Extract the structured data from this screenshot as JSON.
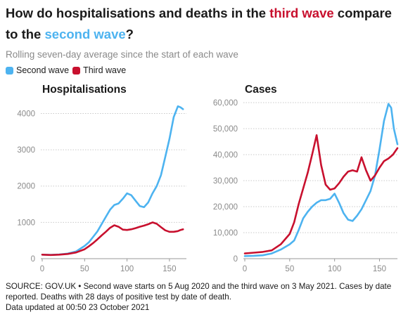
{
  "title": {
    "prefix": "How do hospitalisations and deaths in the ",
    "highlight1": "third wave",
    "middle": " compare to the ",
    "highlight2": "second wave",
    "suffix": "?"
  },
  "subtitle": "Rolling seven-day average since the start of each wave",
  "colors": {
    "second_wave": "#4db3f0",
    "third_wave": "#c8102e"
  },
  "legend": [
    {
      "label": "Second wave",
      "color": "#4db3f0"
    },
    {
      "label": "Third wave",
      "color": "#c8102e"
    }
  ],
  "chart_data": [
    {
      "type": "line",
      "title": "Hospitalisations",
      "xlabel": "",
      "ylabel": "",
      "xlim": [
        0,
        170
      ],
      "ylim": [
        0,
        4300
      ],
      "xticks": [
        0,
        50,
        100,
        150
      ],
      "yticks": [
        0,
        1000,
        2000,
        3000,
        4000
      ],
      "ytick_labels": [
        "0",
        "1000",
        "2000",
        "3000",
        "4000"
      ],
      "grid": true,
      "series": [
        {
          "name": "Second wave",
          "color": "#4db3f0",
          "x": [
            0,
            10,
            20,
            30,
            40,
            50,
            55,
            60,
            65,
            70,
            75,
            80,
            85,
            90,
            95,
            100,
            105,
            110,
            115,
            120,
            125,
            130,
            135,
            140,
            145,
            150,
            155,
            160,
            163,
            166
          ],
          "y": [
            110,
            105,
            115,
            140,
            200,
            350,
            450,
            600,
            750,
            950,
            1150,
            1350,
            1480,
            1520,
            1650,
            1800,
            1750,
            1600,
            1450,
            1420,
            1550,
            1800,
            2000,
            2300,
            2800,
            3300,
            3900,
            4200,
            4170,
            4120
          ]
        },
        {
          "name": "Third wave",
          "color": "#c8102e",
          "x": [
            0,
            10,
            20,
            30,
            40,
            50,
            55,
            60,
            65,
            70,
            75,
            80,
            85,
            90,
            95,
            100,
            105,
            110,
            115,
            120,
            125,
            130,
            135,
            140,
            145,
            150,
            155,
            160,
            163,
            166
          ],
          "y": [
            110,
            100,
            110,
            130,
            170,
            260,
            340,
            430,
            530,
            640,
            740,
            850,
            920,
            880,
            800,
            790,
            810,
            840,
            880,
            910,
            950,
            1000,
            960,
            870,
            780,
            740,
            740,
            760,
            790,
            810
          ]
        }
      ]
    },
    {
      "type": "line",
      "title": "Cases",
      "xlabel": "",
      "ylabel": "",
      "xlim": [
        0,
        170
      ],
      "ylim": [
        0,
        60000
      ],
      "xticks": [
        0,
        50,
        100,
        150
      ],
      "yticks": [
        0,
        10000,
        20000,
        30000,
        40000,
        50000,
        60000
      ],
      "ytick_labels": [
        "0",
        "10,000",
        "20,000",
        "30,000",
        "40,000",
        "50,000",
        "60,000"
      ],
      "grid": true,
      "series": [
        {
          "name": "Second wave",
          "color": "#4db3f0",
          "x": [
            0,
            10,
            20,
            30,
            40,
            50,
            55,
            60,
            65,
            70,
            75,
            80,
            85,
            90,
            95,
            100,
            105,
            110,
            115,
            120,
            125,
            130,
            135,
            140,
            145,
            150,
            155,
            160,
            163,
            166,
            170
          ],
          "y": [
            1000,
            1100,
            1300,
            2000,
            3500,
            5500,
            7000,
            11000,
            15500,
            18000,
            20000,
            21500,
            22500,
            22500,
            23000,
            25000,
            21500,
            17500,
            15000,
            14500,
            16500,
            19000,
            22500,
            26000,
            32000,
            42000,
            53000,
            59500,
            58000,
            50000,
            44000
          ]
        },
        {
          "name": "Third wave",
          "color": "#c8102e",
          "x": [
            0,
            10,
            20,
            30,
            40,
            50,
            55,
            60,
            65,
            70,
            75,
            80,
            85,
            90,
            95,
            100,
            105,
            110,
            115,
            120,
            125,
            130,
            135,
            140,
            145,
            150,
            155,
            160,
            165,
            170
          ],
          "y": [
            2000,
            2300,
            2600,
            3200,
            5500,
            9500,
            14000,
            21000,
            27000,
            33000,
            40000,
            47500,
            36000,
            28500,
            26500,
            27000,
            29000,
            31500,
            33500,
            34000,
            33500,
            39000,
            34000,
            30000,
            32000,
            35000,
            37500,
            38500,
            40000,
            42500
          ]
        }
      ]
    }
  ],
  "footer": {
    "line1": "SOURCE: GOV.UK • Second wave starts on 5 Aug 2020 and the third wave on 3 May 2021. Cases by date reported. Deaths with 28 days of positive test by date of death.",
    "line2": "Data updated at 00:50 23 October 2021"
  }
}
